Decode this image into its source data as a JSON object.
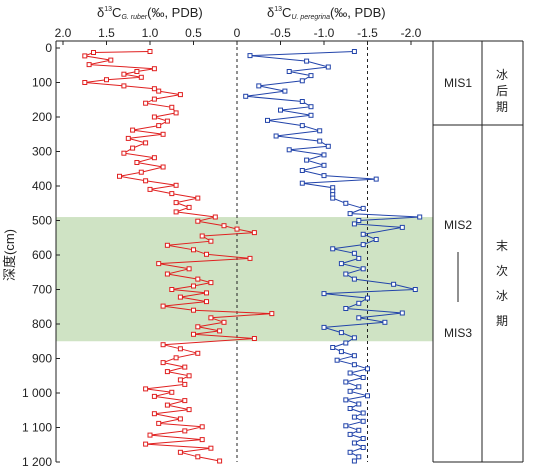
{
  "chart_data": {
    "type": "line",
    "ylabel": "深度(cm)",
    "ylim": [
      1200,
      0
    ],
    "y_ticks": [
      "0",
      "100",
      "200",
      "300",
      "400",
      "500",
      "600",
      "700",
      "800",
      "900",
      "1 000",
      "1 100",
      "1 200"
    ],
    "x_ticks": [
      "2.0",
      "1.5",
      "1.0",
      "0.5",
      "0",
      "-0.5",
      "-1.0",
      "-1.5",
      "-2.0"
    ],
    "xlim": [
      2.0,
      -2.0
    ],
    "title_left": {
      "delta": "δ",
      "sup": "13",
      "element": "C",
      "sub": "G. ruber",
      "unit": "(‰, PDB)"
    },
    "title_right": {
      "delta": "δ",
      "sup": "13",
      "element": "C",
      "sub": "U. peregrina",
      "unit": "(‰, PDB)"
    },
    "shaded_band": {
      "from_depth": 490,
      "to_depth": 850,
      "color": "#cfe3c4"
    },
    "dashed_lines_at": [
      0,
      -1.5
    ],
    "series": [
      {
        "color": "#e02020",
        "points": [
          [
            1.0,
            10
          ],
          [
            1.65,
            13
          ],
          [
            1.75,
            23
          ],
          [
            1.45,
            35
          ],
          [
            1.7,
            48
          ],
          [
            0.95,
            60
          ],
          [
            1.15,
            68
          ],
          [
            1.3,
            76
          ],
          [
            1.1,
            85
          ],
          [
            1.5,
            92
          ],
          [
            1.75,
            100
          ],
          [
            1.3,
            110
          ],
          [
            0.95,
            118
          ],
          [
            0.9,
            125
          ],
          [
            0.65,
            135
          ],
          [
            0.95,
            148
          ],
          [
            1.05,
            160
          ],
          [
            0.75,
            172
          ],
          [
            0.7,
            188
          ],
          [
            0.95,
            200
          ],
          [
            0.8,
            212
          ],
          [
            0.9,
            225
          ],
          [
            1.2,
            238
          ],
          [
            0.85,
            250
          ],
          [
            1.25,
            262
          ],
          [
            1.05,
            275
          ],
          [
            1.2,
            290
          ],
          [
            1.3,
            305
          ],
          [
            0.95,
            318
          ],
          [
            1.15,
            332
          ],
          [
            0.85,
            345
          ],
          [
            1.1,
            360
          ],
          [
            1.35,
            372
          ],
          [
            1.05,
            385
          ],
          [
            0.7,
            398
          ],
          [
            1.0,
            410
          ],
          [
            0.75,
            422
          ],
          [
            0.45,
            435
          ],
          [
            0.7,
            448
          ],
          [
            0.55,
            462
          ],
          [
            0.7,
            475
          ],
          [
            0.25,
            490
          ],
          [
            0.45,
            502
          ],
          [
            0.15,
            515
          ],
          [
            0.0,
            525
          ],
          [
            -0.2,
            535
          ],
          [
            0.4,
            545
          ],
          [
            0.3,
            560
          ],
          [
            0.8,
            572
          ],
          [
            0.5,
            585
          ],
          [
            0.35,
            598
          ],
          [
            -0.15,
            610
          ],
          [
            0.9,
            625
          ],
          [
            0.55,
            640
          ],
          [
            0.8,
            655
          ],
          [
            0.45,
            670
          ],
          [
            0.3,
            680
          ],
          [
            0.5,
            690
          ],
          [
            0.75,
            700
          ],
          [
            0.35,
            710
          ],
          [
            0.65,
            722
          ],
          [
            0.35,
            735
          ],
          [
            0.85,
            748
          ],
          [
            0.5,
            760
          ],
          [
            -0.4,
            770
          ],
          [
            0.3,
            782
          ],
          [
            0.15,
            795
          ],
          [
            0.45,
            808
          ],
          [
            0.2,
            820
          ],
          [
            0.5,
            830
          ],
          [
            -0.2,
            842
          ],
          [
            0.85,
            860
          ],
          [
            0.65,
            872
          ],
          [
            0.45,
            885
          ],
          [
            0.7,
            898
          ],
          [
            0.85,
            912
          ],
          [
            0.6,
            925
          ],
          [
            0.8,
            938
          ],
          [
            0.55,
            950
          ],
          [
            0.65,
            962
          ],
          [
            0.6,
            975
          ],
          [
            1.05,
            988
          ],
          [
            0.75,
            998
          ],
          [
            0.95,
            1010
          ],
          [
            0.6,
            1022
          ],
          [
            0.8,
            1035
          ],
          [
            0.55,
            1048
          ],
          [
            0.95,
            1060
          ],
          [
            0.65,
            1075
          ],
          [
            0.9,
            1088
          ],
          [
            0.4,
            1098
          ],
          [
            0.6,
            1110
          ],
          [
            1.0,
            1122
          ],
          [
            0.4,
            1135
          ],
          [
            1.05,
            1148
          ],
          [
            0.3,
            1160
          ],
          [
            0.65,
            1172
          ],
          [
            0.45,
            1185
          ],
          [
            0.2,
            1197
          ]
        ]
      },
      {
        "color": "#2244aa",
        "points": [
          [
            -1.35,
            10
          ],
          [
            -0.15,
            22
          ],
          [
            -0.8,
            38
          ],
          [
            -1.05,
            55
          ],
          [
            -0.6,
            68
          ],
          [
            -0.85,
            80
          ],
          [
            -0.75,
            95
          ],
          [
            -0.25,
            110
          ],
          [
            -0.55,
            125
          ],
          [
            -0.1,
            140
          ],
          [
            -0.75,
            155
          ],
          [
            -0.85,
            170
          ],
          [
            -0.5,
            180
          ],
          [
            -0.85,
            195
          ],
          [
            -0.35,
            210
          ],
          [
            -0.75,
            225
          ],
          [
            -0.95,
            240
          ],
          [
            -0.45,
            255
          ],
          [
            -0.95,
            270
          ],
          [
            -1.05,
            285
          ],
          [
            -0.6,
            295
          ],
          [
            -1.0,
            310
          ],
          [
            -0.8,
            325
          ],
          [
            -1.0,
            340
          ],
          [
            -0.75,
            355
          ],
          [
            -1.0,
            370
          ],
          [
            -1.6,
            380
          ],
          [
            -0.75,
            392
          ],
          [
            -1.1,
            405
          ],
          [
            -1.1,
            415
          ],
          [
            -1.1,
            425
          ],
          [
            -1.1,
            435
          ],
          [
            -1.25,
            450
          ],
          [
            -1.45,
            465
          ],
          [
            -1.3,
            480
          ],
          [
            -2.1,
            490
          ],
          [
            -1.4,
            500
          ],
          [
            -1.35,
            510
          ],
          [
            -1.9,
            520
          ],
          [
            -1.45,
            540
          ],
          [
            -1.6,
            555
          ],
          [
            -1.45,
            570
          ],
          [
            -1.1,
            582
          ],
          [
            -1.35,
            595
          ],
          [
            -1.4,
            610
          ],
          [
            -1.2,
            625
          ],
          [
            -1.45,
            640
          ],
          [
            -1.25,
            655
          ],
          [
            -1.35,
            670
          ],
          [
            -1.8,
            685
          ],
          [
            -2.05,
            700
          ],
          [
            -1.0,
            712
          ],
          [
            -1.5,
            725
          ],
          [
            -1.4,
            740
          ],
          [
            -1.25,
            755
          ],
          [
            -1.9,
            768
          ],
          [
            -1.4,
            782
          ],
          [
            -1.7,
            795
          ],
          [
            -1.0,
            810
          ],
          [
            -1.2,
            825
          ],
          [
            -1.35,
            840
          ],
          [
            -1.25,
            855
          ],
          [
            -1.1,
            868
          ],
          [
            -1.2,
            880
          ],
          [
            -1.35,
            892
          ],
          [
            -1.15,
            905
          ],
          [
            -1.35,
            918
          ],
          [
            -1.5,
            930
          ],
          [
            -1.3,
            942
          ],
          [
            -1.45,
            955
          ],
          [
            -1.25,
            968
          ],
          [
            -1.4,
            982
          ],
          [
            -1.3,
            995
          ],
          [
            -1.5,
            1008
          ],
          [
            -1.25,
            1020
          ],
          [
            -1.4,
            1032
          ],
          [
            -1.3,
            1045
          ],
          [
            -1.45,
            1058
          ],
          [
            -1.35,
            1070
          ],
          [
            -1.45,
            1082
          ],
          [
            -1.25,
            1095
          ],
          [
            -1.4,
            1108
          ],
          [
            -1.3,
            1120
          ],
          [
            -1.45,
            1132
          ],
          [
            -1.35,
            1145
          ],
          [
            -1.45,
            1158
          ],
          [
            -1.3,
            1172
          ],
          [
            -1.4,
            1185
          ],
          [
            -1.35,
            1197
          ]
        ]
      }
    ]
  },
  "stages": {
    "mis1": "MIS1",
    "mis2": "MIS2",
    "mis3": "MIS3",
    "postglacial_chars": [
      "冰",
      "后",
      "期"
    ],
    "lastglacial_chars": [
      "末",
      "次",
      "冰",
      "期"
    ]
  }
}
